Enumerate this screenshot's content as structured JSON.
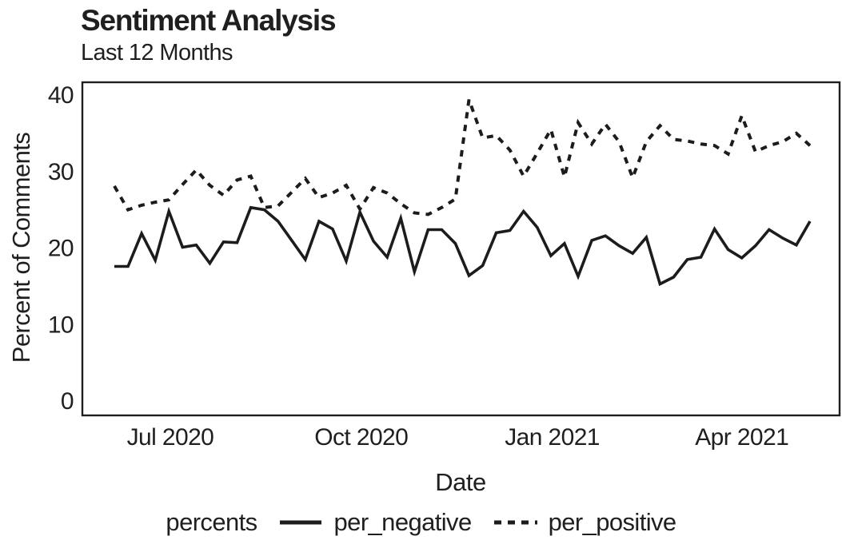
{
  "page": {
    "background": "#ffffff",
    "text_color": "#1f1f1f"
  },
  "chart_data": {
    "type": "line",
    "title": "Sentiment Analysis",
    "subtitle": "Last 12 Months",
    "xlabel": "Date",
    "ylabel": "Percent of Comments",
    "ylim": [
      0,
      40
    ],
    "yticks": [
      0,
      10,
      20,
      30,
      40
    ],
    "xticks": [
      {
        "label": "Jul 2020",
        "week_index": 4.1
      },
      {
        "label": "Oct 2020",
        "week_index": 18.1
      },
      {
        "label": "Jan 2021",
        "week_index": 32.1
      },
      {
        "label": "Apr 2021",
        "week_index": 46.0
      }
    ],
    "x_unit": "week",
    "n_points": 52,
    "grid": false,
    "frame": true,
    "line_color": "#1c1c1c",
    "legend": {
      "title": "percents",
      "position": "bottom"
    },
    "series": [
      {
        "name": "per_negative",
        "dash": "solid",
        "values": [
          17.6,
          17.6,
          21.9,
          18.4,
          24.8,
          20.1,
          20.4,
          18.0,
          20.8,
          20.7,
          25.3,
          25.0,
          23.5,
          21.0,
          18.5,
          23.5,
          22.5,
          18.3,
          24.7,
          20.9,
          18.8,
          23.9,
          16.9,
          22.4,
          22.4,
          20.6,
          16.4,
          17.7,
          22.0,
          22.3,
          24.8,
          22.7,
          19.0,
          20.6,
          16.3,
          21.0,
          21.6,
          20.3,
          19.3,
          21.4,
          15.3,
          16.2,
          18.5,
          18.8,
          22.5,
          19.8,
          18.7,
          20.3,
          22.4,
          21.3,
          20.4,
          23.5
        ]
      },
      {
        "name": "per_positive",
        "dash": "dashed",
        "values": [
          28.1,
          25.0,
          25.6,
          26.0,
          26.3,
          28.3,
          30.2,
          28.2,
          26.9,
          28.9,
          29.4,
          25.3,
          25.5,
          27.3,
          29.1,
          26.6,
          27.2,
          28.2,
          25.1,
          27.9,
          27.2,
          25.8,
          24.6,
          24.4,
          25.3,
          26.4,
          39.4,
          34.4,
          34.7,
          32.8,
          29.4,
          32.4,
          35.5,
          29.3,
          36.4,
          33.6,
          36.2,
          33.9,
          29.2,
          33.9,
          36.0,
          34.2,
          34.0,
          33.6,
          33.4,
          32.3,
          37.3,
          32.6,
          33.4,
          33.9,
          35.0,
          33.4
        ]
      }
    ]
  }
}
